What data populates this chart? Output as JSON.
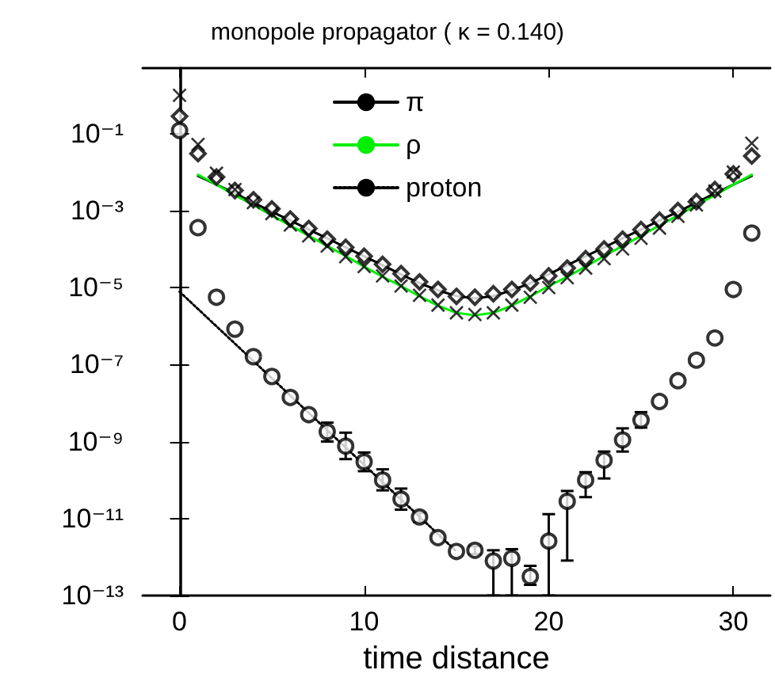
{
  "chart_data": {
    "type": "scatter",
    "title": "monopole propagator ( κ = 0.140)",
    "xlabel": "time distance",
    "xlim": [
      -2,
      32
    ],
    "xticks": [
      0,
      10,
      20,
      30
    ],
    "ylim": [
      1e-13,
      5
    ],
    "log": "y",
    "yticks": [
      {
        "value": 0.1,
        "label": "10⁻¹"
      },
      {
        "value": 0.001,
        "label": "10⁻³"
      },
      {
        "value": 1e-05,
        "label": "10⁻⁵"
      },
      {
        "value": 1e-07,
        "label": "10⁻⁷"
      },
      {
        "value": 1e-09,
        "label": "10⁻⁹"
      },
      {
        "value": 1e-11,
        "label": "10⁻¹¹"
      },
      {
        "value": 1e-13,
        "label": "10⁻¹³"
      }
    ],
    "grid": false,
    "legend": "top",
    "series": [
      {
        "name": "π",
        "type": "line",
        "color": "#000000",
        "line_style": "solid",
        "marker": "none",
        "x": [
          1,
          2,
          3,
          4,
          5,
          6,
          7,
          8,
          9,
          10,
          11,
          12,
          13,
          14,
          15,
          16,
          17,
          18,
          19,
          20,
          21,
          22,
          23,
          24,
          25,
          26,
          27,
          28,
          29,
          30,
          31
        ],
        "values": [
          0.0079,
          0.0047,
          0.0028,
          0.0016,
          0.00093,
          0.00055,
          0.00032,
          0.00019,
          0.00011,
          6.5e-05,
          3.8e-05,
          2.2e-05,
          1.3e-05,
          8.5e-06,
          6e-06,
          5.2e-06,
          6e-06,
          8.5e-06,
          1.3e-05,
          2.2e-05,
          3.8e-05,
          6.5e-05,
          0.00011,
          0.00019,
          0.00032,
          0.00055,
          0.00093,
          0.0016,
          0.0028,
          0.0047,
          0.0079
        ]
      },
      {
        "name": "ρ",
        "type": "line",
        "color": "#00ee00",
        "line_style": "solid",
        "marker": "none",
        "x": [
          1,
          2,
          3,
          4,
          5,
          6,
          7,
          8,
          9,
          10,
          11,
          12,
          13,
          14,
          15,
          16,
          17,
          18,
          19,
          20,
          21,
          22,
          23,
          24,
          25,
          26,
          27,
          28,
          29,
          30,
          31
        ],
        "values": [
          0.0085,
          0.0047,
          0.0025,
          0.0014,
          0.00074,
          0.00041,
          0.00022,
          0.00012,
          6.6e-05,
          3.5e-05,
          1.9e-05,
          1.1e-05,
          5.9e-06,
          3.4e-06,
          2.2e-06,
          1.9e-06,
          2.2e-06,
          3.4e-06,
          5.9e-06,
          1.1e-05,
          1.9e-05,
          3.5e-05,
          6.6e-05,
          0.00012,
          0.00022,
          0.00041,
          0.00074,
          0.0014,
          0.0025,
          0.0047,
          0.0085
        ]
      },
      {
        "name": "proton",
        "type": "line",
        "color": "#000000",
        "line_style": "dotted",
        "marker": "none",
        "x": [
          0,
          15
        ],
        "values": [
          7.8e-06,
          1.4e-12
        ]
      },
      {
        "type": "scatter",
        "color": "#000000",
        "marker": "diamond",
        "x": [
          0,
          1,
          2,
          3,
          4,
          5,
          6,
          7,
          8,
          9,
          10,
          11,
          12,
          13,
          14,
          15,
          16,
          17,
          18,
          19,
          20,
          21,
          22,
          23,
          24,
          25,
          26,
          27,
          28,
          29,
          30,
          31
        ],
        "values": [
          0.28,
          0.03,
          0.0074,
          0.0033,
          0.0019,
          0.0011,
          0.0006,
          0.00034,
          0.00018,
          0.00011,
          6.5e-05,
          4e-05,
          2.3e-05,
          1.4e-05,
          8.9e-06,
          5.9e-06,
          5.6e-06,
          6.9e-06,
          8.9e-06,
          1.3e-05,
          2e-05,
          3.2e-05,
          5.6e-05,
          0.0001,
          0.00018,
          0.00032,
          0.00056,
          0.001,
          0.0017,
          0.0035,
          0.0089,
          0.026
        ]
      },
      {
        "type": "scatter",
        "color": "#000000",
        "marker": "cross",
        "x": [
          0,
          1,
          2,
          3,
          4,
          5,
          6,
          7,
          8,
          9,
          10,
          11,
          12,
          13,
          14,
          15,
          16,
          17,
          18,
          19,
          20,
          21,
          22,
          23,
          24,
          25,
          26,
          27,
          28,
          29,
          30,
          31
        ],
        "values": [
          0.98,
          0.052,
          0.0093,
          0.0035,
          0.0016,
          0.00083,
          0.00042,
          0.00022,
          0.00012,
          6.3e-05,
          3.5e-05,
          2e-05,
          1.1e-05,
          6.3e-06,
          3.5e-06,
          2.2e-06,
          2e-06,
          2.2e-06,
          3.5e-06,
          5.6e-06,
          1e-05,
          1.8e-05,
          3.2e-05,
          5.6e-05,
          0.0001,
          0.00019,
          0.00035,
          0.00071,
          0.0014,
          0.0032,
          0.01,
          0.056
        ]
      },
      {
        "type": "scatter",
        "color": "#000000",
        "marker": "circle",
        "x": [
          0,
          1,
          2,
          3,
          4,
          5,
          6,
          7,
          8,
          9,
          10,
          11,
          12,
          13,
          14,
          15,
          16,
          17,
          18,
          19,
          20,
          21,
          22,
          23,
          24,
          25,
          26,
          27,
          28,
          29,
          30,
          31
        ],
        "values": [
          0.12,
          0.00036,
          5.6e-06,
          8.3e-07,
          1.6e-07,
          4.9e-08,
          1.4e-08,
          5e-09,
          1.8e-09,
          7.6e-10,
          3e-10,
          1e-10,
          3.2e-11,
          1.1e-11,
          3.2e-12,
          1.4e-12,
          1.5e-12,
          7.9e-13,
          9.3e-13,
          3.1e-13,
          2.6e-12,
          2.8e-11,
          1e-10,
          3.3e-10,
          1.1e-09,
          3.6e-09,
          1.1e-08,
          3.8e-08,
          1.3e-07,
          4.9e-07,
          8.9e-06,
          0.00026
        ],
        "errors": [
          null,
          null,
          null,
          null,
          null,
          null,
          null,
          null,
          [
            1e-09,
            3.1e-09
          ],
          [
            3.5e-10,
            1.7e-09
          ],
          [
            1.7e-10,
            5.2e-10
          ],
          [
            5.4e-11,
            1.9e-10
          ],
          [
            1.7e-11,
            6e-11
          ],
          [
            8.1e-12,
            1.4e-11
          ],
          null,
          null,
          [
            1.2e-12,
            1.9e-12
          ],
          [
            1e-13,
            1.5e-12
          ],
          [
            1e-13,
            1.6e-12
          ],
          [
            1.9e-13,
            5.9e-13
          ],
          [
            1e-13,
            1.3e-11
          ],
          [
            8.1e-13,
            5.2e-11
          ],
          [
            3.6e-11,
            1.6e-10
          ],
          [
            1.1e-10,
            5.5e-10
          ],
          [
            5.5e-10,
            2.2e-09
          ],
          [
            2.3e-09,
            5.8e-09
          ],
          null,
          null,
          null,
          null,
          null,
          null
        ]
      }
    ]
  }
}
